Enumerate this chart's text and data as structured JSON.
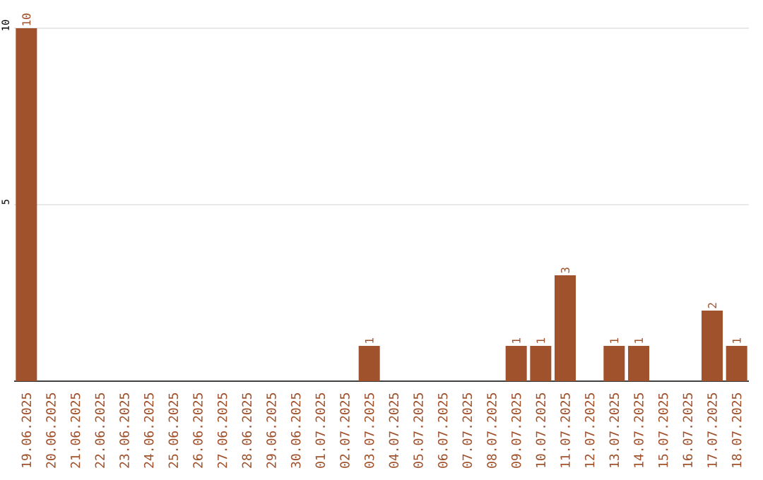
{
  "chart_data": {
    "type": "bar",
    "categories": [
      "19.06.2025",
      "20.06.2025",
      "21.06.2025",
      "22.06.2025",
      "23.06.2025",
      "24.06.2025",
      "25.06.2025",
      "26.06.2025",
      "27.06.2025",
      "28.06.2025",
      "29.06.2025",
      "30.06.2025",
      "01.07.2025",
      "02.07.2025",
      "03.07.2025",
      "04.07.2025",
      "05.07.2025",
      "06.07.2025",
      "07.07.2025",
      "08.07.2025",
      "09.07.2025",
      "10.07.2025",
      "11.07.2025",
      "12.07.2025",
      "13.07.2025",
      "14.07.2025",
      "15.07.2025",
      "16.07.2025",
      "17.07.2025",
      "18.07.2025"
    ],
    "values": [
      10,
      0,
      0,
      0,
      0,
      0,
      0,
      0,
      0,
      0,
      0,
      0,
      0,
      0,
      1,
      0,
      0,
      0,
      0,
      0,
      1,
      1,
      3,
      0,
      1,
      1,
      0,
      0,
      2,
      1
    ],
    "value_labels": [
      "10",
      null,
      null,
      null,
      null,
      null,
      null,
      null,
      null,
      null,
      null,
      null,
      null,
      null,
      "1",
      null,
      null,
      null,
      null,
      null,
      "1",
      "1",
      "3",
      null,
      "1",
      "1",
      null,
      null,
      "2",
      "1"
    ],
    "color": "#a0522d",
    "ylim": [
      0,
      10
    ],
    "yticks": [
      5,
      10
    ],
    "grid": "y"
  }
}
